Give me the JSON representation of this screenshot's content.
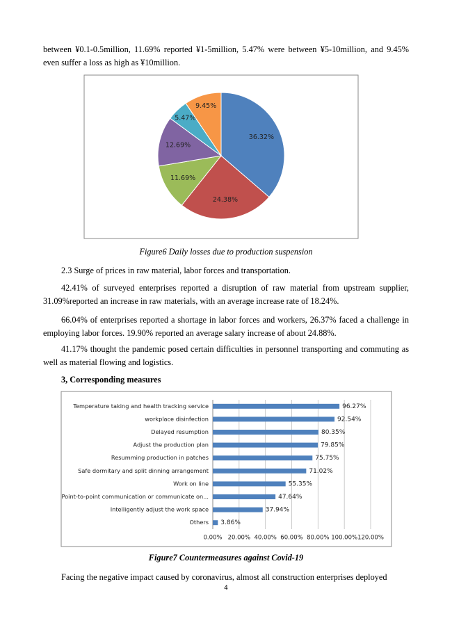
{
  "paragraphs": [
    "between ¥0.1-0.5million, 11.69% reported ¥1-5million, 5.47% were between ¥5-10million, and 9.45% even suffer a loss as high as ¥10million.",
    "2.3 Surge of prices in raw material, labor forces and transportation.",
    "42.41% of surveyed enterprises reported a disruption of raw material from upstream supplier, 31.09%reported an increase in raw materials, with an average increase rate of 18.24%.",
    "66.04% of enterprises reported a shortage in labor forces and workers, 26.37% faced a challenge in employing labor forces. 19.90% reported an average salary increase of about 24.88%.",
    "41.17% thought the pandemic posed certain difficulties in personnel transporting and commuting as well as material flowing and logistics.",
    "Facing the negative impact caused by coronavirus, almost all construction enterprises deployed"
  ],
  "heading": "3, Corresponding measures",
  "page_number": "4",
  "chart_data": [
    {
      "type": "pie",
      "title": "Figure6    Daily losses due to production suspension",
      "values": [
        36.32,
        24.38,
        11.69,
        12.69,
        5.47,
        9.45
      ],
      "value_labels": [
        "36.32%",
        "24.38%",
        "11.69%",
        "12.69%",
        "5.47%",
        "9.45%"
      ],
      "colors": [
        "#4f81bd",
        "#c0504d",
        "#9bbb59",
        "#8064a2",
        "#4bacc6",
        "#f79646"
      ]
    },
    {
      "type": "barh",
      "title": "Figure7 Countermeasures against Covid-19",
      "categories": [
        "Temperature taking and health tracking service",
        "workplace disinfection",
        "Delayed resumption",
        "Adjust the production plan",
        "Resumming production in patches",
        "Safe dormitary and split dinning arrangement",
        "Work on line",
        "Point-to-point communication or communicate on...",
        "Intelligently adjust the work space",
        "Others"
      ],
      "values": [
        96.27,
        92.54,
        80.35,
        79.85,
        75.75,
        71.02,
        55.35,
        47.64,
        37.94,
        3.86
      ],
      "value_labels": [
        "96.27%",
        "92.54%",
        "80.35%",
        "79.85%",
        "75.75%",
        "71.02%",
        "55.35%",
        "47.64%",
        "37.94%",
        "3.86%"
      ],
      "color": "#4f81bd",
      "xlim": [
        0,
        120
      ],
      "xticks": [
        {
          "value": 0,
          "label": "0.00%"
        },
        {
          "value": 20,
          "label": "20.00%"
        },
        {
          "value": 40,
          "label": "40.00%"
        },
        {
          "value": 60,
          "label": "60.00%"
        },
        {
          "value": 80,
          "label": "80.00%"
        },
        {
          "value": 100,
          "label": "100.00%"
        },
        {
          "value": 120,
          "label": "120.00%"
        }
      ],
      "grid": true
    }
  ]
}
